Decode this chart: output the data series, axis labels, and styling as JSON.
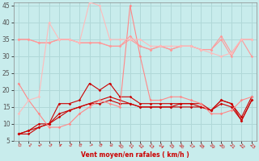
{
  "title": "",
  "xlabel": "Vent moyen/en rafales ( km/h )",
  "background_color": "#c8ecec",
  "grid_color": "#b0d8d8",
  "xlim": [
    -0.5,
    23.5
  ],
  "ylim": [
    5,
    46
  ],
  "yticks": [
    5,
    10,
    15,
    20,
    25,
    30,
    35,
    40,
    45
  ],
  "xticks": [
    0,
    1,
    2,
    3,
    4,
    5,
    6,
    7,
    8,
    9,
    10,
    11,
    12,
    13,
    14,
    15,
    16,
    17,
    18,
    19,
    20,
    21,
    22,
    23
  ],
  "series": [
    {
      "x": [
        0,
        1,
        2,
        3,
        4,
        5,
        6,
        7,
        8,
        9,
        10,
        11,
        12,
        13,
        14,
        15,
        16,
        17,
        18,
        19,
        20,
        21,
        22,
        23
      ],
      "y": [
        7,
        8,
        10,
        10,
        16,
        16,
        17,
        22,
        20,
        22,
        18,
        18,
        16,
        16,
        16,
        16,
        16,
        16,
        16,
        14,
        17,
        16,
        12,
        18
      ],
      "color": "#cc0000",
      "lw": 0.8,
      "marker": "D",
      "ms": 1.8
    },
    {
      "x": [
        0,
        1,
        2,
        3,
        4,
        5,
        6,
        7,
        8,
        9,
        10,
        11,
        12,
        13,
        14,
        15,
        16,
        17,
        18,
        19,
        20,
        21,
        22,
        23
      ],
      "y": [
        7,
        8,
        9,
        10,
        13,
        14,
        15,
        16,
        16,
        17,
        16,
        16,
        15,
        15,
        15,
        15,
        15,
        15,
        15,
        14,
        16,
        15,
        11,
        17
      ],
      "color": "#cc0000",
      "lw": 0.8,
      "marker": "D",
      "ms": 1.8
    },
    {
      "x": [
        0,
        1,
        2,
        3,
        4,
        5,
        6,
        7,
        8,
        9,
        10,
        11,
        12,
        13,
        14,
        15,
        16,
        17,
        18,
        19,
        20,
        21,
        22,
        23
      ],
      "y": [
        7,
        7,
        9,
        10,
        12,
        14,
        15,
        16,
        17,
        18,
        17,
        16,
        15,
        15,
        15,
        15,
        16,
        16,
        15,
        14,
        17,
        16,
        11,
        17
      ],
      "color": "#cc0000",
      "lw": 0.8,
      "marker": "D",
      "ms": 1.8
    },
    {
      "x": [
        0,
        1,
        2,
        3,
        4,
        5,
        6,
        7,
        8,
        9,
        10,
        11,
        12,
        13,
        14,
        15,
        16,
        17,
        18,
        19,
        20,
        21,
        22,
        23
      ],
      "y": [
        22,
        17,
        13,
        9,
        9,
        10,
        13,
        15,
        17,
        16,
        15,
        45,
        30,
        17,
        17,
        18,
        18,
        17,
        16,
        13,
        13,
        14,
        17,
        18
      ],
      "color": "#ff8888",
      "lw": 0.8,
      "marker": "D",
      "ms": 1.8
    },
    {
      "x": [
        0,
        1,
        2,
        3,
        4,
        5,
        6,
        7,
        8,
        9,
        10,
        11,
        12,
        13,
        14,
        15,
        16,
        17,
        18,
        19,
        20,
        21,
        22,
        23
      ],
      "y": [
        35,
        35,
        34,
        34,
        35,
        35,
        34,
        34,
        34,
        33,
        33,
        35,
        33,
        32,
        33,
        32,
        33,
        33,
        32,
        32,
        35,
        30,
        35,
        35
      ],
      "color": "#ff9999",
      "lw": 0.8,
      "marker": "D",
      "ms": 1.8
    },
    {
      "x": [
        0,
        1,
        2,
        3,
        4,
        5,
        6,
        7,
        8,
        9,
        10,
        11,
        12,
        13,
        14,
        15,
        16,
        17,
        18,
        19,
        20,
        21,
        22,
        23
      ],
      "y": [
        35,
        35,
        34,
        34,
        35,
        35,
        34,
        34,
        34,
        33,
        33,
        36,
        33,
        32,
        33,
        32,
        33,
        33,
        32,
        32,
        36,
        31,
        35,
        30
      ],
      "color": "#ff9999",
      "lw": 0.8,
      "marker": "D",
      "ms": 1.8
    },
    {
      "x": [
        0,
        1,
        2,
        3,
        4,
        5,
        6,
        7,
        8,
        9,
        10,
        11,
        12,
        13,
        14,
        15,
        16,
        17,
        18,
        19,
        20,
        21,
        22,
        23
      ],
      "y": [
        13,
        17,
        18,
        40,
        35,
        35,
        34,
        46,
        45,
        35,
        35,
        35,
        35,
        33,
        33,
        33,
        33,
        33,
        32,
        31,
        30,
        31,
        35,
        35
      ],
      "color": "#ffbbbb",
      "lw": 0.8,
      "marker": "D",
      "ms": 1.8
    }
  ]
}
